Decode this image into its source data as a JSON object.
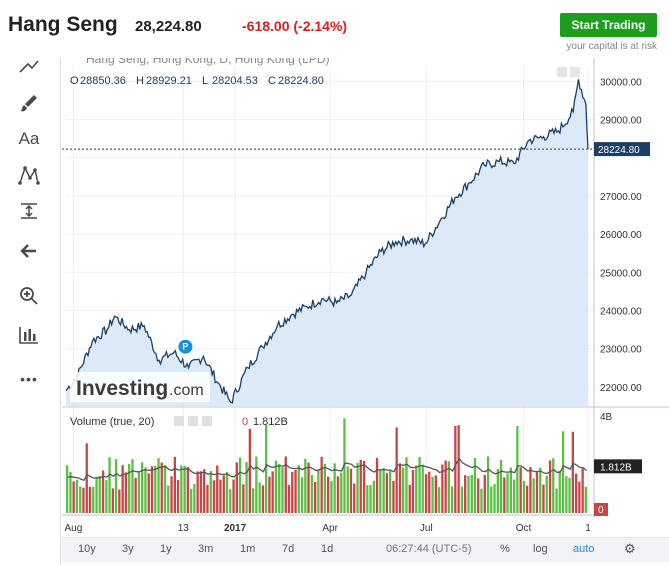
{
  "header": {
    "title": "Hang Seng",
    "price": "28,224.80",
    "change": "-618.00 (-2.14%)",
    "trade_button": "Start Trading",
    "risk_note": "your capital is at risk"
  },
  "chart_header": {
    "series_name": "Hang Seng, Hong Kong, D, Hong Kong (LPD)",
    "ohlc": [
      {
        "k": "O",
        "v": "28850.36"
      },
      {
        "k": "H",
        "v": "28929.21"
      },
      {
        "k": "L",
        "v": "28204.53"
      },
      {
        "k": "C",
        "v": "28224.80"
      }
    ]
  },
  "volume": {
    "label": "Volume (true, 20)",
    "value_prefix": "0",
    "value": "1.812B",
    "marker": "1.812B",
    "axis_top": "4B",
    "axis_zero": "0"
  },
  "watermark": {
    "brand": "Investing",
    "suffix": ".com"
  },
  "last_price_marker": "28224.80",
  "event_marker": "P",
  "colors": {
    "line": "#1c3f66",
    "area": "#dceaf7",
    "up_bar": "#5bbf45",
    "down_bar": "#c94545",
    "price_marker_bg": "#1c3f66",
    "change_red": "#e31b1b",
    "trade_green": "#1e9e1e"
  },
  "toolbar": {
    "icons": [
      "lines-icon",
      "brush-icon",
      "text-icon",
      "pattern-icon",
      "measure-icon",
      "back-arrow-icon",
      "zoom-icon",
      "indicator-icon",
      "more-icon"
    ],
    "text_tool_label": "Aa",
    "more_label": "•••"
  },
  "bottom_bar": {
    "ranges": [
      "10y",
      "3y",
      "1y",
      "3m",
      "1m",
      "7d",
      "1d"
    ],
    "time": "06:27:44 (UTC-5)",
    "percent": "%",
    "log": "log",
    "auto": "auto"
  },
  "chart_data": {
    "type": "area",
    "title": "Hang Seng, Hong Kong, D, Hong Kong (LPD)",
    "x": [
      "2016-07-25",
      "2016-08-05",
      "2016-08-19",
      "2016-09-02",
      "2016-09-09",
      "2016-09-23",
      "2016-10-07",
      "2016-10-21",
      "2016-11-04",
      "2016-11-18",
      "2016-12-02",
      "2016-12-16",
      "2016-12-28",
      "2017-01-13",
      "2017-01-27",
      "2017-02-10",
      "2017-02-24",
      "2017-03-10",
      "2017-03-24",
      "2017-04-07",
      "2017-04-21",
      "2017-05-05",
      "2017-05-19",
      "2017-06-02",
      "2017-06-16",
      "2017-06-30",
      "2017-07-14",
      "2017-07-28",
      "2017-08-11",
      "2017-08-25",
      "2017-09-08",
      "2017-09-22",
      "2017-10-06",
      "2017-10-20",
      "2017-11-03",
      "2017-11-17",
      "2017-11-22",
      "2017-11-29",
      "2017-12-01"
    ],
    "y": [
      21900,
      22300,
      23200,
      23500,
      23850,
      23500,
      23600,
      22700,
      22900,
      22500,
      22800,
      22100,
      21600,
      22500,
      23050,
      23600,
      23900,
      24100,
      24300,
      24200,
      24400,
      25000,
      25550,
      25800,
      25850,
      25750,
      26350,
      26950,
      27350,
      27800,
      27900,
      27850,
      28450,
      28550,
      28700,
      29200,
      30050,
      29400,
      28225
    ],
    "xlabel": "",
    "ylabel": "",
    "x_tick_labels": [
      "Aug",
      "13",
      "2017",
      "Apr",
      "Jul",
      "Oct",
      "1"
    ],
    "x_tick_dates": [
      "2016-08-01",
      "2016-11-13",
      "2017-01-01",
      "2017-04-01",
      "2017-07-01",
      "2017-10-01",
      "2017-12-01"
    ],
    "y_tick_labels": [
      "22000.00",
      "23000.00",
      "24000.00",
      "25000.00",
      "26000.00",
      "27000.00",
      "28000.00",
      "29000.00",
      "30000.00"
    ],
    "ylim": [
      21500,
      30400
    ],
    "last_value": 28224.8,
    "volume": {
      "ylim": [
        0,
        4000000000
      ],
      "last_value": 1812000000
    },
    "grid": true
  }
}
